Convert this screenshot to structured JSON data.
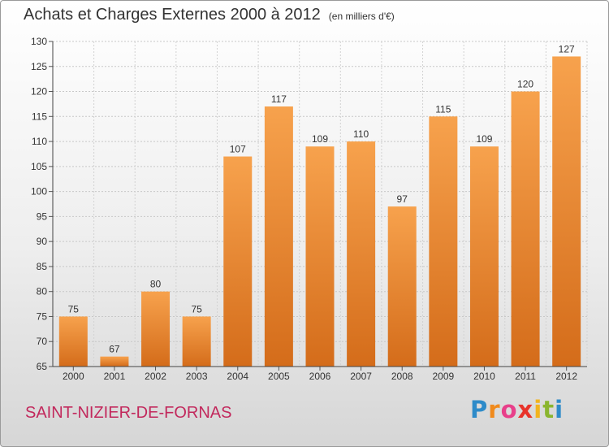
{
  "header": {
    "title": "Achats et Charges Externes 2000 à 2012",
    "subtitle": "(en milliers d'€)"
  },
  "footer": {
    "commune": "SAINT-NIZIER-DE-FORNAS",
    "logo_text": "Proxiti"
  },
  "colors": {
    "bar_top": "#f7a24d",
    "bar_bottom": "#d46c1a",
    "commune": "#c2285c"
  },
  "chart_data": {
    "type": "bar",
    "title": "Achats et Charges Externes 2000 à 2012",
    "subtitle": "(en milliers d'€)",
    "categories": [
      "2000",
      "2001",
      "2002",
      "2003",
      "2004",
      "2005",
      "2006",
      "2007",
      "2008",
      "2009",
      "2010",
      "2011",
      "2012"
    ],
    "values": [
      75,
      67,
      80,
      75,
      107,
      117,
      109,
      110,
      97,
      115,
      109,
      120,
      127
    ],
    "ylim": [
      65,
      130
    ],
    "yticks": [
      65,
      70,
      75,
      80,
      85,
      90,
      95,
      100,
      105,
      110,
      115,
      120,
      125,
      130
    ],
    "grid": true
  }
}
